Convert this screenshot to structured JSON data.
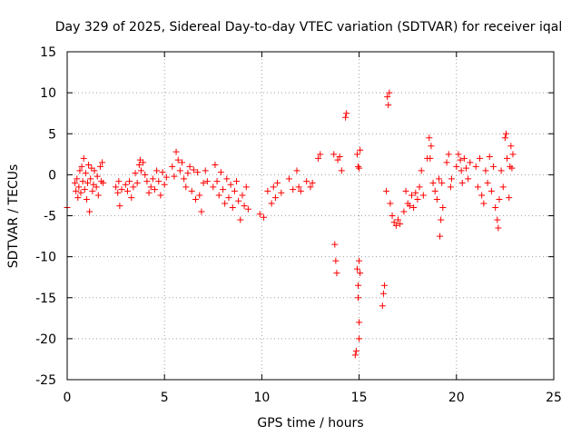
{
  "chart_data": {
    "type": "scatter",
    "title": "Day 329 of 2025, Sidereal Day-to-day VTEC variation (SDTVAR) for receiver iqal",
    "xlabel": "GPS time / hours",
    "ylabel": "SDTVAR / TECUs",
    "xlim": [
      0,
      25
    ],
    "ylim": [
      -25,
      15
    ],
    "xticks": [
      "0",
      "5",
      "10",
      "15",
      "20",
      "25"
    ],
    "yticks": [
      "15",
      "10",
      "5",
      "0",
      "-5",
      "-10",
      "-15",
      "-20",
      "-25"
    ],
    "grid": true,
    "marker": "plus",
    "color": "#ff0000",
    "series": [
      {
        "name": "SDTVAR",
        "points": [
          [
            0.0,
            -4.0
          ],
          [
            0.4,
            -1.0
          ],
          [
            0.45,
            -2.0
          ],
          [
            0.5,
            -0.5
          ],
          [
            0.55,
            -2.8
          ],
          [
            0.6,
            -1.5
          ],
          [
            0.65,
            0.5
          ],
          [
            0.7,
            -2.2
          ],
          [
            0.75,
            1.0
          ],
          [
            0.8,
            -0.8
          ],
          [
            0.85,
            2.0
          ],
          [
            0.9,
            -1.8
          ],
          [
            0.95,
            0.2
          ],
          [
            1.0,
            -3.0
          ],
          [
            1.05,
            -1.0
          ],
          [
            1.1,
            1.2
          ],
          [
            1.15,
            -4.5
          ],
          [
            1.2,
            -0.5
          ],
          [
            1.25,
            0.8
          ],
          [
            1.3,
            -2.0
          ],
          [
            1.35,
            -1.2
          ],
          [
            1.4,
            0.5
          ],
          [
            1.5,
            -1.5
          ],
          [
            1.55,
            -0.2
          ],
          [
            1.6,
            -2.5
          ],
          [
            1.7,
            1.0
          ],
          [
            1.75,
            -0.8
          ],
          [
            1.8,
            1.5
          ],
          [
            1.85,
            -1.0
          ],
          [
            2.5,
            -1.5
          ],
          [
            2.6,
            -2.2
          ],
          [
            2.65,
            -0.8
          ],
          [
            2.7,
            -3.8
          ],
          [
            2.8,
            -1.8
          ],
          [
            3.0,
            -1.2
          ],
          [
            3.1,
            -2.0
          ],
          [
            3.2,
            -0.8
          ],
          [
            3.3,
            -2.8
          ],
          [
            3.4,
            -1.5
          ],
          [
            3.5,
            0.2
          ],
          [
            3.6,
            -1.0
          ],
          [
            3.7,
            1.2
          ],
          [
            3.75,
            1.8
          ],
          [
            3.8,
            0.5
          ],
          [
            3.9,
            1.5
          ],
          [
            4.0,
            0.0
          ],
          [
            4.1,
            -0.8
          ],
          [
            4.2,
            -2.2
          ],
          [
            4.3,
            -1.5
          ],
          [
            4.4,
            -0.5
          ],
          [
            4.5,
            -1.8
          ],
          [
            4.6,
            0.5
          ],
          [
            4.7,
            -0.8
          ],
          [
            4.8,
            -2.5
          ],
          [
            4.9,
            0.3
          ],
          [
            5.0,
            -1.2
          ],
          [
            5.1,
            -0.3
          ],
          [
            5.4,
            1.0
          ],
          [
            5.5,
            -0.2
          ],
          [
            5.6,
            2.8
          ],
          [
            5.7,
            1.8
          ],
          [
            5.8,
            0.5
          ],
          [
            5.9,
            1.5
          ],
          [
            6.0,
            -0.5
          ],
          [
            6.1,
            -1.5
          ],
          [
            6.2,
            0.2
          ],
          [
            6.3,
            1.0
          ],
          [
            6.4,
            -2.0
          ],
          [
            6.5,
            0.6
          ],
          [
            6.6,
            -3.0
          ],
          [
            6.7,
            0.3
          ],
          [
            6.8,
            -2.5
          ],
          [
            6.9,
            -4.5
          ],
          [
            7.0,
            -1.0
          ],
          [
            7.1,
            0.5
          ],
          [
            7.2,
            -0.8
          ],
          [
            7.5,
            -1.5
          ],
          [
            7.6,
            1.2
          ],
          [
            7.7,
            -0.8
          ],
          [
            7.8,
            -2.5
          ],
          [
            7.9,
            0.3
          ],
          [
            8.0,
            -1.8
          ],
          [
            8.1,
            -3.5
          ],
          [
            8.2,
            -0.5
          ],
          [
            8.3,
            -2.8
          ],
          [
            8.4,
            -1.2
          ],
          [
            8.5,
            -4.0
          ],
          [
            8.6,
            -2.0
          ],
          [
            8.7,
            -0.8
          ],
          [
            8.8,
            -3.2
          ],
          [
            8.9,
            -5.5
          ],
          [
            9.0,
            -2.5
          ],
          [
            9.1,
            -3.8
          ],
          [
            9.2,
            -1.5
          ],
          [
            9.3,
            -4.2
          ],
          [
            9.9,
            -4.8
          ],
          [
            10.1,
            -5.2
          ],
          [
            10.3,
            -2.0
          ],
          [
            10.5,
            -3.5
          ],
          [
            10.6,
            -1.5
          ],
          [
            10.7,
            -2.8
          ],
          [
            10.8,
            -1.0
          ],
          [
            11.0,
            -2.2
          ],
          [
            11.4,
            -0.5
          ],
          [
            11.6,
            -1.8
          ],
          [
            11.8,
            0.5
          ],
          [
            11.9,
            -1.5
          ],
          [
            12.0,
            -2.0
          ],
          [
            12.3,
            -0.8
          ],
          [
            12.5,
            -1.5
          ],
          [
            12.6,
            -1.0
          ],
          [
            12.9,
            2.0
          ],
          [
            13.0,
            2.5
          ],
          [
            13.7,
            2.5
          ],
          [
            13.75,
            -8.5
          ],
          [
            13.8,
            -10.5
          ],
          [
            13.85,
            -12.0
          ],
          [
            13.9,
            1.8
          ],
          [
            14.0,
            2.2
          ],
          [
            14.1,
            0.5
          ],
          [
            14.3,
            7.0
          ],
          [
            14.35,
            7.5
          ],
          [
            14.8,
            -22.0
          ],
          [
            14.85,
            -21.5
          ],
          [
            14.9,
            -11.5
          ],
          [
            14.95,
            -15.0
          ],
          [
            15.0,
            -18.0
          ],
          [
            15.0,
            -20.0
          ],
          [
            15.05,
            -12.0
          ],
          [
            14.95,
            -13.5
          ],
          [
            15.0,
            -10.5
          ],
          [
            14.9,
            2.5
          ],
          [
            14.95,
            1.0
          ],
          [
            15.0,
            0.8
          ],
          [
            15.05,
            3.0
          ],
          [
            16.2,
            -16.0
          ],
          [
            16.25,
            -14.5
          ],
          [
            16.3,
            -13.5
          ],
          [
            16.4,
            -2.0
          ],
          [
            16.45,
            9.5
          ],
          [
            16.5,
            8.5
          ],
          [
            16.55,
            10.0
          ],
          [
            16.6,
            -3.5
          ],
          [
            16.7,
            -5.0
          ],
          [
            16.8,
            -5.8
          ],
          [
            16.9,
            -6.2
          ],
          [
            17.0,
            -5.5
          ],
          [
            17.1,
            -6.0
          ],
          [
            17.3,
            -4.5
          ],
          [
            17.4,
            -2.0
          ],
          [
            17.5,
            -3.5
          ],
          [
            17.6,
            -3.8
          ],
          [
            17.7,
            -2.5
          ],
          [
            17.8,
            -4.0
          ],
          [
            17.9,
            -2.2
          ],
          [
            18.0,
            -3.0
          ],
          [
            18.1,
            -1.5
          ],
          [
            18.2,
            0.5
          ],
          [
            18.3,
            -2.5
          ],
          [
            18.5,
            2.0
          ],
          [
            18.6,
            4.5
          ],
          [
            18.65,
            2.0
          ],
          [
            18.7,
            3.5
          ],
          [
            18.8,
            -1.0
          ],
          [
            18.9,
            -2.0
          ],
          [
            19.0,
            -3.0
          ],
          [
            19.1,
            -0.5
          ],
          [
            19.15,
            -7.5
          ],
          [
            19.2,
            -5.5
          ],
          [
            19.25,
            -1.0
          ],
          [
            19.3,
            -4.0
          ],
          [
            19.5,
            1.5
          ],
          [
            19.6,
            2.5
          ],
          [
            19.7,
            -1.5
          ],
          [
            19.75,
            -0.5
          ],
          [
            20.0,
            1.0
          ],
          [
            20.1,
            2.5
          ],
          [
            20.2,
            1.8
          ],
          [
            20.25,
            0.5
          ],
          [
            20.3,
            -1.0
          ],
          [
            20.4,
            2.0
          ],
          [
            20.5,
            0.8
          ],
          [
            20.6,
            -0.5
          ],
          [
            20.7,
            1.5
          ],
          [
            21.0,
            1.0
          ],
          [
            21.1,
            -1.5
          ],
          [
            21.2,
            2.0
          ],
          [
            21.3,
            -2.5
          ],
          [
            21.4,
            -3.5
          ],
          [
            21.5,
            0.5
          ],
          [
            21.6,
            -1.0
          ],
          [
            21.7,
            2.2
          ],
          [
            21.8,
            -2.0
          ],
          [
            21.9,
            1.0
          ],
          [
            22.0,
            -4.0
          ],
          [
            22.1,
            -5.5
          ],
          [
            22.15,
            -6.5
          ],
          [
            22.2,
            -3.0
          ],
          [
            22.3,
            0.5
          ],
          [
            22.4,
            -1.5
          ],
          [
            22.5,
            4.5
          ],
          [
            22.55,
            5.0
          ],
          [
            22.6,
            2.0
          ],
          [
            22.7,
            -2.8
          ],
          [
            22.75,
            1.0
          ],
          [
            22.8,
            3.5
          ],
          [
            22.85,
            0.8
          ],
          [
            22.9,
            2.5
          ]
        ]
      }
    ]
  }
}
